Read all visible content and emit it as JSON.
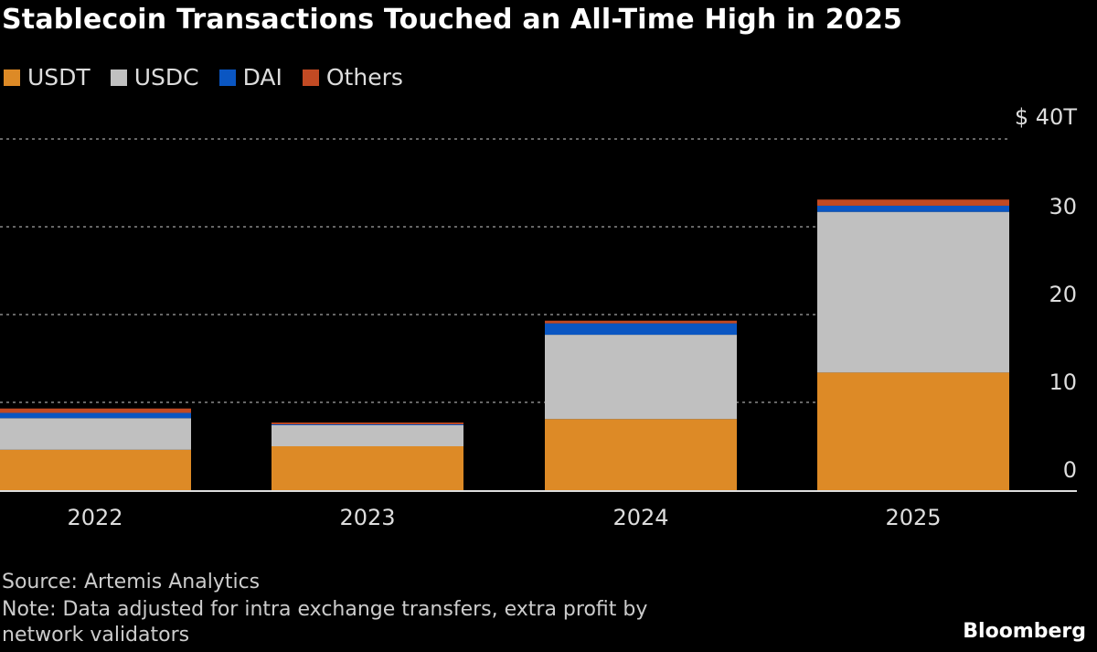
{
  "chart_data": {
    "type": "bar",
    "stacked": true,
    "title": "Stablecoin Transactions Touched an All-Time High in 2025",
    "categories": [
      "2022",
      "2023",
      "2024",
      "2025"
    ],
    "series": [
      {
        "name": "USDT",
        "color": "#dd8a26",
        "values": [
          4.6,
          5.0,
          8.1,
          13.4
        ]
      },
      {
        "name": "USDC",
        "color": "#c0c0c0",
        "values": [
          3.6,
          2.4,
          9.6,
          18.3
        ]
      },
      {
        "name": "DAI",
        "color": "#0a56c2",
        "values": [
          0.6,
          0.1,
          1.3,
          0.7
        ]
      },
      {
        "name": "Others",
        "color": "#c24a23",
        "values": [
          0.5,
          0.2,
          0.3,
          0.7
        ]
      }
    ],
    "ylim": [
      0,
      40
    ],
    "yticks": [
      0,
      10,
      20,
      30,
      40
    ],
    "ytick_labels": [
      "0",
      "10",
      "20",
      "30",
      "$ 40T"
    ],
    "grid": true,
    "y_axis_side": "right",
    "legend_position": "top-left"
  },
  "footer": {
    "source": "Source: Artemis Analytics",
    "note_line1": "Note: Data adjusted for intra exchange transfers, extra profit by",
    "note_line2": "network validators",
    "brand": "Bloomberg"
  }
}
